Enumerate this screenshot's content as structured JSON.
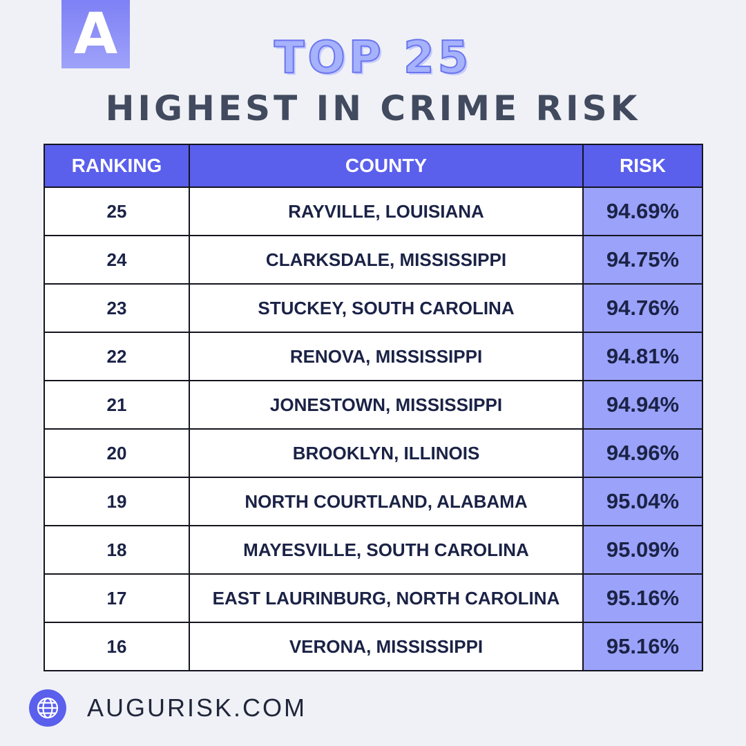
{
  "logo": {
    "letter": "A"
  },
  "title": {
    "top": "TOP 25",
    "sub": "HIGHEST IN CRIME RISK"
  },
  "colors": {
    "background": "#eff1f6",
    "header": "#5a5fec",
    "risk_cell": "#9aa2f9",
    "title_top": "#a6b2fb",
    "title_sub": "#414a5e"
  },
  "chart_data": {
    "type": "table",
    "columns": [
      "RANKING",
      "COUNTY",
      "RISK"
    ],
    "rows": [
      [
        "25",
        "RAYVILLE, LOUISIANA",
        "94.69%"
      ],
      [
        "24",
        "CLARKSDALE, MISSISSIPPI",
        "94.75%"
      ],
      [
        "23",
        "STUCKEY, SOUTH CAROLINA",
        "94.76%"
      ],
      [
        "22",
        "RENOVA, MISSISSIPPI",
        "94.81%"
      ],
      [
        "21",
        "JONESTOWN, MISSISSIPPI",
        "94.94%"
      ],
      [
        "20",
        "BROOKLYN, ILLINOIS",
        "94.96%"
      ],
      [
        "19",
        "NORTH COURTLAND, ALABAMA",
        "95.04%"
      ],
      [
        "18",
        "MAYESVILLE, SOUTH CAROLINA",
        "95.09%"
      ],
      [
        "17",
        "EAST LAURINBURG, NORTH CAROLINA",
        "95.16%"
      ],
      [
        "16",
        "VERONA, MISSISSIPPI",
        "95.16%"
      ]
    ]
  },
  "footer": {
    "icon": "globe-icon",
    "url": "AUGURISK.COM"
  }
}
